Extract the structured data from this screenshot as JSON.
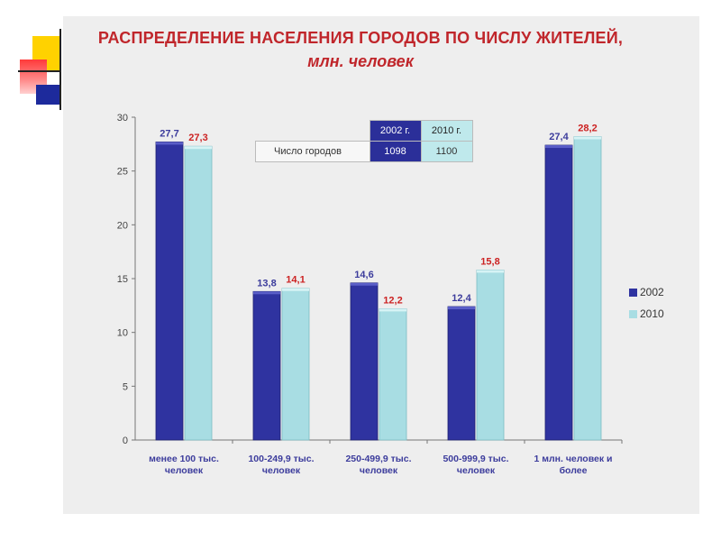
{
  "chart_data": {
    "type": "bar",
    "title": "РАСПРЕДЕЛЕНИЕ НАСЕЛЕНИЯ ГОРОДОВ ПО ЧИСЛУ ЖИТЕЛЕЙ,",
    "subtitle": "млн. человек",
    "categories": [
      [
        "менее 100 тыс.",
        "человек"
      ],
      [
        "100-249,9 тыс.",
        "человек"
      ],
      [
        "250-499,9 тыс.",
        "человек"
      ],
      [
        "500-999,9 тыс.",
        "человек"
      ],
      [
        "1 млн. человек и",
        "более"
      ]
    ],
    "series": [
      {
        "name": "2002",
        "values": [
          27.7,
          13.8,
          14.6,
          12.4,
          27.4
        ],
        "labels": [
          "27,7",
          "13,8",
          "14,6",
          "12,4",
          "27,4"
        ],
        "color": "#2f33a0",
        "label_color": "#3c3c9c"
      },
      {
        "name": "2010",
        "values": [
          27.3,
          14.1,
          12.2,
          15.8,
          28.2
        ],
        "labels": [
          "27,3",
          "14,1",
          "12,2",
          "15,8",
          "28,2"
        ],
        "color": "#a8dde3",
        "label_color": "#cc2222"
      }
    ],
    "ylim": [
      0,
      30
    ],
    "yticks": [
      0,
      5,
      10,
      15,
      20,
      25,
      30
    ],
    "legend_position": "right",
    "grid": false
  },
  "table": {
    "header_2002": "2002 г.",
    "header_2010": "2010 г.",
    "row_label": "Число городов",
    "value_2002": "1098",
    "value_2010": "1100"
  }
}
